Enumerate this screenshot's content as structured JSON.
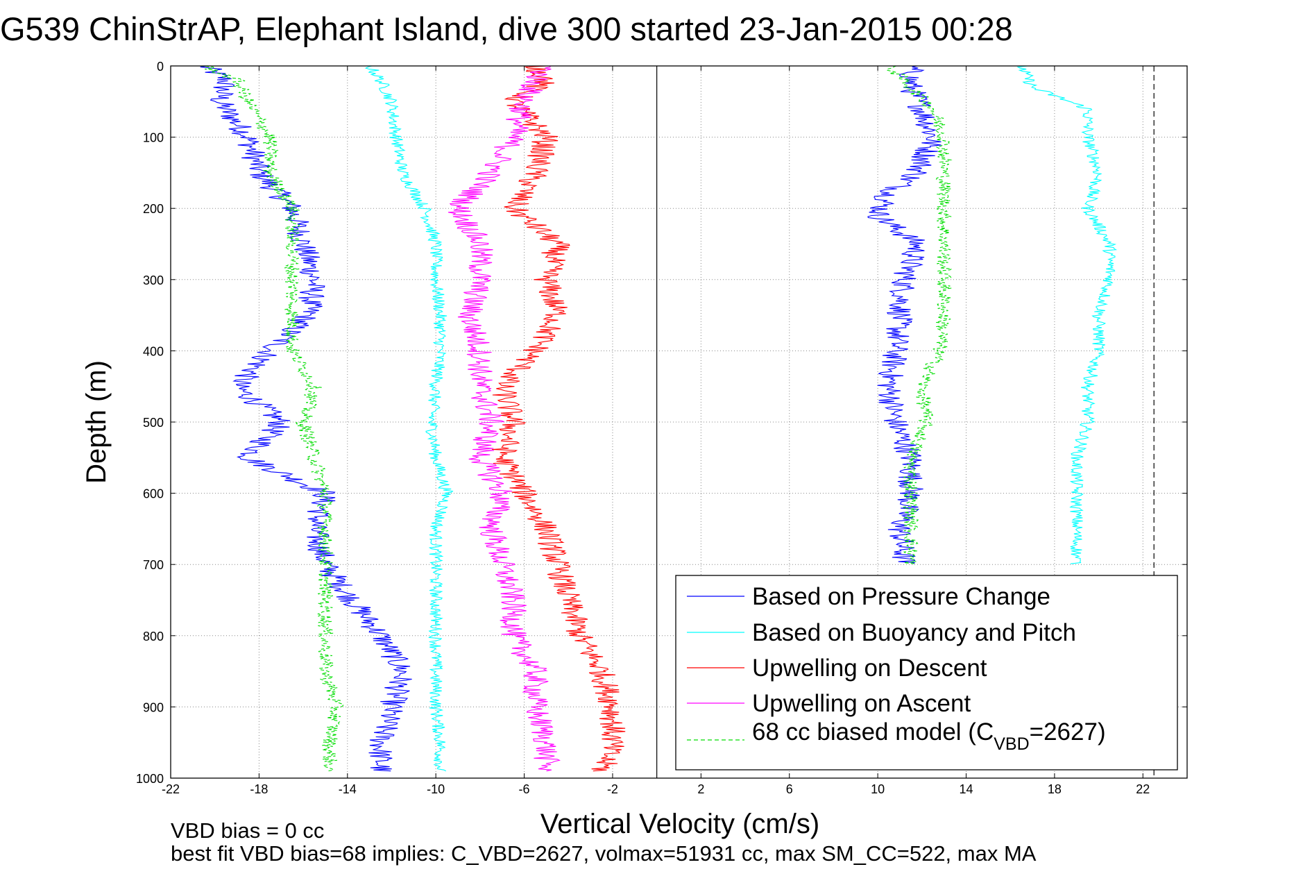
{
  "chart_data": {
    "type": "line",
    "title": "G539 ChinStrAP, Elephant Island, dive 300 started 23-Jan-2015 00:28",
    "xlabel": "Vertical Velocity (cm/s)",
    "ylabel": "Depth (m)",
    "xlim": [
      -22,
      24
    ],
    "ylim": [
      1000,
      0
    ],
    "y_reversed": true,
    "xticks": [
      "-22",
      "-18",
      "-14",
      "-10",
      "-6",
      "-2",
      "2",
      "6",
      "10",
      "14",
      "18",
      "22"
    ],
    "yticks": [
      "0",
      "100",
      "200",
      "300",
      "400",
      "500",
      "600",
      "700",
      "800",
      "900",
      "1000"
    ],
    "grid": true,
    "legend_position": "lower-right",
    "reference_lines": {
      "zero_velocity_x": 0,
      "dashed_x": 22.5
    },
    "legend": {
      "s1": "Based on Pressure Change",
      "s2": "Based on Buoyancy and Pitch",
      "s3": "Upwelling on Descent",
      "s4": "Upwelling on Ascent",
      "s5_pre": "68 cc biased model (C",
      "s5_sub": "VBD",
      "s5_post": "=2627)"
    },
    "series": [
      {
        "name": "Based on Pressure Change (descent)",
        "color": "#0000ff",
        "style": "solid",
        "depth": [
          0,
          20,
          50,
          100,
          150,
          200,
          250,
          300,
          350,
          400,
          450,
          500,
          550,
          600,
          650,
          700,
          750,
          800,
          850,
          900,
          950,
          990
        ],
        "velocity": [
          -20.5,
          -19.5,
          -19.8,
          -18.5,
          -18.0,
          -16.5,
          -16.0,
          -15.5,
          -15.8,
          -17.5,
          -19.0,
          -17.0,
          -18.5,
          -15.0,
          -15.5,
          -15.0,
          -13.8,
          -12.5,
          -11.5,
          -12.0,
          -12.5,
          -12.5
        ]
      },
      {
        "name": "Based on Pressure Change (ascent)",
        "color": "#0000ff",
        "style": "solid",
        "depth": [
          0,
          30,
          60,
          100,
          150,
          180,
          210,
          250,
          300,
          350,
          400,
          450,
          500,
          550,
          600,
          650,
          700
        ],
        "velocity": [
          11.5,
          11.5,
          12.0,
          12.5,
          11.8,
          10.5,
          10.0,
          11.8,
          11.2,
          11.0,
          10.8,
          10.5,
          10.8,
          11.5,
          11.5,
          11.0,
          11.2
        ]
      },
      {
        "name": "Based on Buoyancy and Pitch (descent)",
        "color": "#00ffff",
        "style": "solid",
        "depth": [
          0,
          20,
          50,
          100,
          150,
          200,
          250,
          300,
          350,
          400,
          450,
          500,
          550,
          600,
          650,
          700,
          750,
          800,
          850,
          900,
          950,
          990
        ],
        "velocity": [
          -13.0,
          -12.5,
          -12.0,
          -11.8,
          -11.5,
          -10.5,
          -10.0,
          -10.0,
          -9.8,
          -9.8,
          -10.0,
          -10.2,
          -10.0,
          -9.5,
          -10.0,
          -10.0,
          -10.0,
          -10.0,
          -10.0,
          -10.0,
          -9.8,
          -9.8
        ]
      },
      {
        "name": "Based on Buoyancy and Pitch (ascent)",
        "color": "#00ffff",
        "style": "solid",
        "depth": [
          0,
          30,
          60,
          100,
          150,
          200,
          250,
          300,
          350,
          400,
          450,
          500,
          550,
          600,
          650,
          700
        ],
        "velocity": [
          16.5,
          17.0,
          19.5,
          19.5,
          20.0,
          19.5,
          20.5,
          20.5,
          20.0,
          20.0,
          19.5,
          19.5,
          19.0,
          19.0,
          19.0,
          19.0
        ]
      },
      {
        "name": "Upwelling on Descent",
        "color": "#ff0000",
        "style": "solid",
        "depth": [
          0,
          20,
          50,
          100,
          150,
          200,
          250,
          300,
          350,
          400,
          450,
          500,
          550,
          600,
          650,
          700,
          750,
          800,
          850,
          900,
          950,
          990
        ],
        "velocity": [
          -5.5,
          -5.0,
          -6.5,
          -5.0,
          -5.5,
          -6.5,
          -4.5,
          -5.0,
          -4.5,
          -5.5,
          -7.0,
          -6.5,
          -7.0,
          -6.0,
          -5.0,
          -4.5,
          -4.0,
          -3.5,
          -2.5,
          -2.0,
          -2.0,
          -2.5
        ]
      },
      {
        "name": "Upwelling on Ascent",
        "color": "#ff00ff",
        "style": "solid",
        "depth": [
          0,
          20,
          50,
          100,
          150,
          200,
          250,
          300,
          350,
          400,
          450,
          500,
          550,
          600,
          650,
          700,
          750,
          800,
          850,
          900,
          950,
          990
        ],
        "velocity": [
          -5.0,
          -5.5,
          -6.0,
          -6.5,
          -7.5,
          -9.0,
          -8.0,
          -8.0,
          -8.5,
          -8.0,
          -8.0,
          -7.5,
          -8.0,
          -7.0,
          -7.5,
          -7.0,
          -6.5,
          -6.5,
          -5.5,
          -5.5,
          -5.0,
          -5.0
        ]
      },
      {
        "name": "68 cc biased model (descent)",
        "color": "#00dd00",
        "style": "dashed",
        "depth": [
          0,
          20,
          50,
          100,
          150,
          200,
          250,
          300,
          350,
          400,
          450,
          500,
          550,
          600,
          650,
          700,
          750,
          800,
          850,
          900,
          950,
          990
        ],
        "velocity": [
          -20.5,
          -19.0,
          -18.5,
          -17.5,
          -17.5,
          -16.5,
          -16.5,
          -16.5,
          -16.5,
          -16.5,
          -15.5,
          -16.0,
          -15.5,
          -15.0,
          -15.0,
          -15.0,
          -15.0,
          -15.0,
          -15.0,
          -14.5,
          -14.8,
          -14.8
        ]
      },
      {
        "name": "68 cc biased model (ascent)",
        "color": "#00dd00",
        "style": "dashed",
        "depth": [
          0,
          30,
          60,
          100,
          150,
          200,
          250,
          300,
          350,
          400,
          450,
          500,
          550,
          600,
          650,
          700
        ],
        "velocity": [
          10.5,
          11.5,
          12.5,
          13.0,
          13.0,
          13.0,
          13.0,
          13.0,
          13.0,
          12.8,
          12.0,
          12.2,
          11.5,
          11.5,
          11.5,
          11.5
        ]
      }
    ]
  },
  "footer": {
    "line1": "VBD bias = 0 cc",
    "line2": "best fit VBD bias=68 implies: C_VBD=2627, volmax=51931 cc, max SM_CC=522, max MA"
  }
}
